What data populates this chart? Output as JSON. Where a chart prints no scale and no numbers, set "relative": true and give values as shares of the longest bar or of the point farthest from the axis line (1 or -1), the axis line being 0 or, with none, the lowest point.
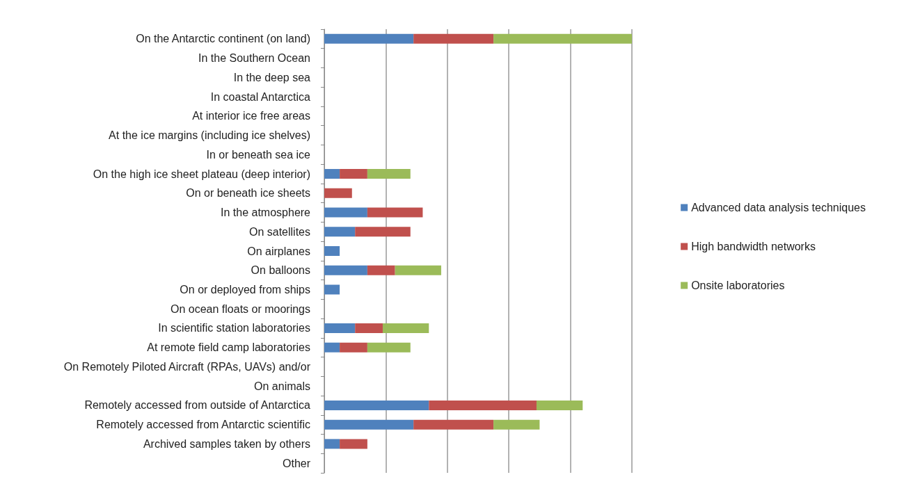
{
  "chart_data": {
    "type": "bar",
    "orientation": "horizontal",
    "stacked": true,
    "relative": true,
    "grid": "x",
    "legend": "right",
    "categories": [
      "On the Antarctic continent (on land)",
      "In the Southern Ocean",
      "In the deep sea",
      "In coastal Antarctica",
      "At interior ice free areas",
      "At the ice margins (including ice shelves)",
      "In or beneath sea ice",
      "On the high ice sheet plateau (deep interior)",
      "On or beneath ice sheets",
      "In the atmosphere",
      "On satellites",
      "On airplanes",
      "On balloons",
      "On or deployed from ships",
      "On ocean floats or moorings",
      "In scientific station laboratories",
      "At remote field camp laboratories",
      "On Remotely Piloted Aircraft (RPAs, UAVs) and/or",
      "On animals",
      "Remotely accessed from outside of Antarctica",
      "Remotely accessed from Antarctic scientific",
      "Archived samples taken by others",
      "Other"
    ],
    "series": [
      {
        "name": "Advanced data analysis techniques",
        "color": "#4f81bd",
        "values": [
          0.29,
          0,
          0,
          0,
          0,
          0,
          0,
          0.05,
          0,
          0.14,
          0.1,
          0.05,
          0.14,
          0.05,
          0,
          0.1,
          0.05,
          0,
          0,
          0.34,
          0.29,
          0.05,
          0
        ]
      },
      {
        "name": "High bandwidth networks",
        "color": "#c0504d",
        "values": [
          0.26,
          0,
          0,
          0,
          0,
          0,
          0,
          0.09,
          0.09,
          0.18,
          0.18,
          0,
          0.09,
          0,
          0,
          0.09,
          0.09,
          0,
          0,
          0.35,
          0.26,
          0.09,
          0
        ]
      },
      {
        "name": "Onsite laboratories",
        "color": "#9bbb59",
        "values": [
          0.45,
          0,
          0,
          0,
          0,
          0,
          0,
          0.14,
          0,
          0,
          0,
          0,
          0.15,
          0,
          0,
          0.15,
          0.14,
          0,
          0,
          0.15,
          0.15,
          0,
          0
        ]
      }
    ]
  }
}
